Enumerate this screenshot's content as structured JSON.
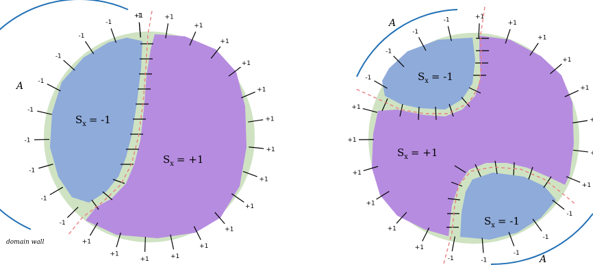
{
  "colors": {
    "ring": "#cfe3c3",
    "negative_region": "#8fabda",
    "positive_region": "#b68ce0",
    "arc": "#1f6fb5",
    "wall": "#ea7e7e",
    "tick": "#000000"
  },
  "left_panel": {
    "region_neg": {
      "label": "S",
      "sub": "x",
      "value": "= -1"
    },
    "region_pos": {
      "label": "S",
      "sub": "x",
      "value": "= +1"
    },
    "subsystem_label": "A",
    "domain_wall_label": "domain wall",
    "boundary_spins": [
      "-1",
      "-1",
      "-1",
      "-1",
      "-1",
      "-1",
      "-1",
      "-1",
      "-1",
      "-1",
      "+1",
      "+1",
      "+1",
      "+1",
      "+1",
      "+1",
      "+1",
      "+1",
      "+1",
      "+1",
      "+1",
      "+1",
      "+1",
      "+1",
      "+1",
      "+1"
    ]
  },
  "right_panel": {
    "region_top_neg": {
      "label": "S",
      "sub": "x",
      "value": "= -1"
    },
    "region_pos": {
      "label": "S",
      "sub": "x",
      "value": "= +1"
    },
    "region_bottom_neg": {
      "label": "S",
      "sub": "x",
      "value": "= -1"
    },
    "subsystem_label_top": "A",
    "subsystem_label_bottom": "A",
    "boundary_spins": [
      "-1",
      "-1",
      "-1",
      "-1",
      "+1",
      "+1",
      "+1",
      "+1",
      "+1",
      "+1",
      "+1",
      "+1",
      "-1",
      "-1",
      "-1",
      "-1",
      "-1",
      "+1",
      "+1",
      "+1",
      "+1",
      "+1",
      "+1"
    ]
  }
}
